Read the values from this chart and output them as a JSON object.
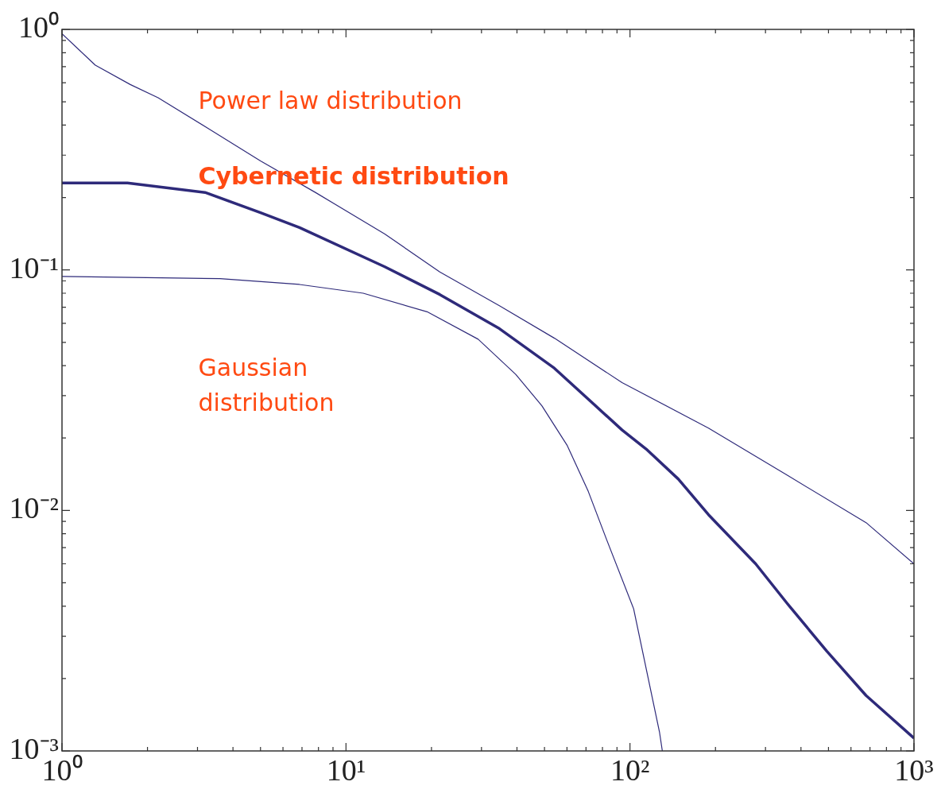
{
  "chart_data": {
    "type": "line",
    "log": "xy",
    "grid": false,
    "legend": false,
    "marker": "none",
    "line_style": "solid",
    "xlim": [
      1,
      1000
    ],
    "ylim": [
      0.001,
      1
    ],
    "xticks": [
      {
        "value": 1,
        "label": "10⁰"
      },
      {
        "value": 2,
        "label": null
      },
      {
        "value": 3,
        "label": null
      },
      {
        "value": 4,
        "label": null
      },
      {
        "value": 5,
        "label": null
      },
      {
        "value": 6,
        "label": null
      },
      {
        "value": 7,
        "label": null
      },
      {
        "value": 8,
        "label": null
      },
      {
        "value": 9,
        "label": null
      },
      {
        "value": 10,
        "label": "10¹"
      },
      {
        "value": 20,
        "label": null
      },
      {
        "value": 30,
        "label": null
      },
      {
        "value": 40,
        "label": null
      },
      {
        "value": 50,
        "label": null
      },
      {
        "value": 60,
        "label": null
      },
      {
        "value": 70,
        "label": null
      },
      {
        "value": 80,
        "label": null
      },
      {
        "value": 90,
        "label": null
      },
      {
        "value": 100,
        "label": "10²"
      },
      {
        "value": 200,
        "label": null
      },
      {
        "value": 300,
        "label": null
      },
      {
        "value": 400,
        "label": null
      },
      {
        "value": 500,
        "label": null
      },
      {
        "value": 600,
        "label": null
      },
      {
        "value": 700,
        "label": null
      },
      {
        "value": 800,
        "label": null
      },
      {
        "value": 900,
        "label": null
      },
      {
        "value": 1000,
        "label": "10³"
      }
    ],
    "yticks": [
      {
        "value": 0.001,
        "label": "10⁻³"
      },
      {
        "value": 0.002,
        "label": null
      },
      {
        "value": 0.003,
        "label": null
      },
      {
        "value": 0.004,
        "label": null
      },
      {
        "value": 0.005,
        "label": null
      },
      {
        "value": 0.006,
        "label": null
      },
      {
        "value": 0.007,
        "label": null
      },
      {
        "value": 0.008,
        "label": null
      },
      {
        "value": 0.009,
        "label": null
      },
      {
        "value": 0.01,
        "label": "10⁻²"
      },
      {
        "value": 0.02,
        "label": null
      },
      {
        "value": 0.03,
        "label": null
      },
      {
        "value": 0.04,
        "label": null
      },
      {
        "value": 0.05,
        "label": null
      },
      {
        "value": 0.06,
        "label": null
      },
      {
        "value": 0.07,
        "label": null
      },
      {
        "value": 0.08,
        "label": null
      },
      {
        "value": 0.09,
        "label": null
      },
      {
        "value": 0.1,
        "label": "10⁻¹"
      },
      {
        "value": 0.2,
        "label": null
      },
      {
        "value": 0.3,
        "label": null
      },
      {
        "value": 0.4,
        "label": null
      },
      {
        "value": 0.5,
        "label": null
      },
      {
        "value": 0.6,
        "label": null
      },
      {
        "value": 0.7,
        "label": null
      },
      {
        "value": 0.8,
        "label": null
      },
      {
        "value": 0.9,
        "label": null
      },
      {
        "value": 1,
        "label": "10⁰"
      }
    ],
    "series": [
      {
        "name": "Power law distribution",
        "color": "#2e2a7a",
        "x": [
          1,
          1.31,
          1.74,
          2.18,
          3.3,
          5.0,
          7.8,
          13.7,
          21.4,
          34.7,
          54.2,
          93.8,
          189,
          358,
          678,
          1000
        ],
        "values": [
          0.96,
          0.71,
          0.59,
          0.52,
          0.385,
          0.284,
          0.21,
          0.141,
          0.098,
          0.071,
          0.052,
          0.034,
          0.022,
          0.014,
          0.0089,
          0.006
        ]
      },
      {
        "name": "Cybernetic distribution",
        "color": "#2e2a7a",
        "x": [
          1,
          1.7,
          3.19,
          5.0,
          6.86,
          13.7,
          21.4,
          34.7,
          54.2,
          93.8,
          114,
          148,
          189,
          277,
          358,
          493,
          678,
          1000
        ],
        "values": [
          0.23,
          0.23,
          0.21,
          0.173,
          0.15,
          0.103,
          0.079,
          0.057,
          0.039,
          0.0216,
          0.018,
          0.0135,
          0.0096,
          0.006,
          0.0041,
          0.0026,
          0.0017,
          0.00113
        ]
      },
      {
        "name": "Gaussian distribution",
        "color": "#2e2a7a",
        "x": [
          1,
          3.6,
          6.86,
          11.5,
          19.3,
          29.2,
          39.6,
          49.0,
          60.0,
          71.3,
          82.6,
          103,
          127,
          130
        ],
        "values": [
          0.094,
          0.092,
          0.087,
          0.08,
          0.067,
          0.0515,
          0.0368,
          0.0272,
          0.0187,
          0.012,
          0.0076,
          0.0039,
          0.0012,
          0.001
        ]
      }
    ]
  }
}
